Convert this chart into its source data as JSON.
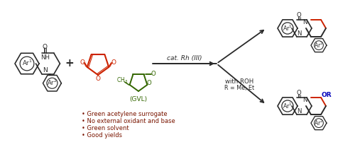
{
  "bg_color": "#ffffff",
  "black": "#2a2a2a",
  "red": "#cc2200",
  "green": "#336600",
  "blue": "#0000bb",
  "dark_red": "#7a1500",
  "bullet_text": [
    "• Green acetylene surrogate",
    "• No external oxidant and base",
    "• Green solvent",
    "• Good yields"
  ],
  "cat_label": "cat. Rh (III)",
  "gvl_label": "(GVL)",
  "with_roh": "with ROH",
  "r_label": "R = Me, Et",
  "figsize": [
    5.0,
    2.08
  ],
  "dpi": 100
}
